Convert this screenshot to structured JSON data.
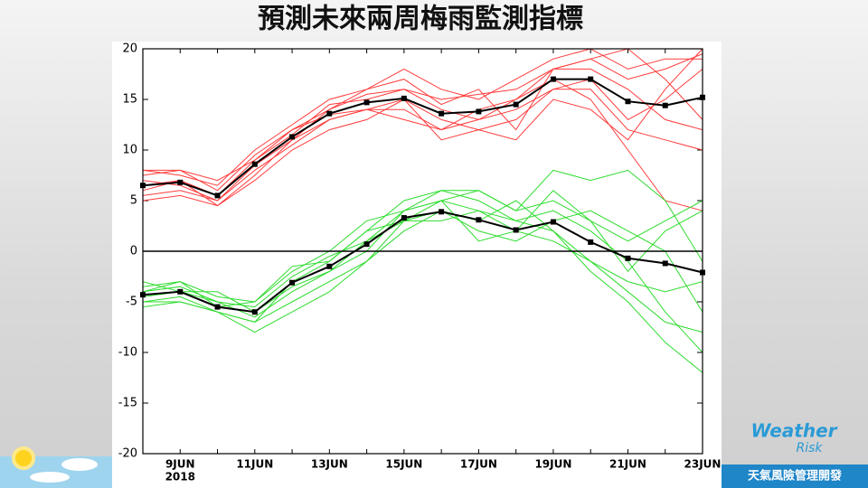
{
  "slide_title": "預測未來兩周梅雨監測指標",
  "logo": {
    "line1": "Weather",
    "line2": "Risk",
    "tagline": "天氣風險管理開發"
  },
  "chart_data": {
    "type": "line",
    "categories": [
      null,
      "9JUN",
      null,
      "11JUN",
      null,
      "13JUN",
      null,
      "15JUN",
      null,
      "17JUN",
      null,
      "19JUN",
      null,
      "21JUN",
      null,
      "23JUN"
    ],
    "x_sublabel": "2018",
    "ylim": [
      -20,
      20
    ],
    "yticks": [
      -20,
      -15,
      -10,
      -5,
      0,
      5,
      10,
      15,
      20
    ],
    "zero_line": true,
    "grid": false,
    "series": [
      {
        "color": "#ff3b3b",
        "values": [
          7.5,
          8,
          6,
          9.5,
          12,
          14,
          15.5,
          16,
          14,
          13,
          15,
          18,
          18,
          16,
          13,
          12
        ]
      },
      {
        "color": "#ff3b3b",
        "values": [
          5.5,
          6,
          5,
          8,
          10.5,
          13,
          14,
          14,
          12,
          14,
          15,
          17,
          15,
          10,
          5,
          4
        ]
      },
      {
        "color": "#ff3b3b",
        "values": [
          8,
          7.5,
          6.5,
          10,
          12.5,
          15,
          16,
          18,
          16,
          15,
          17,
          19,
          20,
          18,
          19,
          19
        ]
      },
      {
        "color": "#ff3b3b",
        "values": [
          6,
          7,
          4.5,
          7,
          10,
          12,
          13,
          15,
          11,
          12,
          13,
          16,
          17,
          13,
          15,
          18
        ]
      },
      {
        "color": "#ff3b3b",
        "values": [
          7,
          6.5,
          5,
          8.5,
          11,
          14,
          16,
          17,
          14.5,
          16,
          12,
          18,
          19,
          17,
          18,
          19.5
        ]
      },
      {
        "color": "#ff3b3b",
        "values": [
          5,
          5.5,
          4.5,
          7.5,
          11,
          13,
          14,
          13,
          12,
          13,
          14,
          16,
          16,
          12,
          11,
          10
        ]
      },
      {
        "color": "#ff3b3b",
        "values": [
          8,
          8,
          7,
          9,
          11.5,
          14.5,
          15,
          16,
          15,
          15.5,
          16,
          18,
          19,
          20,
          17,
          13
        ]
      },
      {
        "color": "#ff3b3b",
        "values": [
          6.5,
          7,
          5.5,
          9,
          12,
          13.5,
          14,
          15,
          13,
          12,
          11,
          15,
          14,
          11,
          16,
          20
        ]
      },
      {
        "color": "#000000",
        "marker": "square",
        "values": [
          6.5,
          6.8,
          5.5,
          8.6,
          11.3,
          13.6,
          14.7,
          15.1,
          13.6,
          13.8,
          14.5,
          17.0,
          17.0,
          14.8,
          14.4,
          15.2
        ]
      },
      {
        "color": "#2edc2e",
        "values": [
          -4,
          -3.5,
          -5,
          -6.5,
          -4,
          -2,
          1,
          4,
          5,
          4,
          3,
          4,
          2,
          -1,
          -6,
          -10
        ]
      },
      {
        "color": "#2edc2e",
        "values": [
          -5,
          -4.5,
          -6,
          -7,
          -3,
          -1,
          2,
          5,
          6,
          5,
          3,
          2,
          -1,
          -4,
          -7,
          -8
        ]
      },
      {
        "color": "#2edc2e",
        "values": [
          -3.5,
          -3,
          -4.5,
          -5,
          -2,
          0,
          3,
          4,
          6,
          6,
          4,
          5,
          3,
          1,
          3,
          5
        ]
      },
      {
        "color": "#2edc2e",
        "values": [
          -5.5,
          -5,
          -6,
          -7,
          -5,
          -3,
          -1,
          2,
          4,
          2,
          1,
          3,
          4,
          2,
          0,
          -6
        ]
      },
      {
        "color": "#2edc2e",
        "values": [
          -4.5,
          -4,
          -5,
          -5.5,
          -2.5,
          -0.5,
          1,
          3,
          4,
          3,
          5,
          2,
          -2,
          -5,
          -9,
          -12
        ]
      },
      {
        "color": "#2edc2e",
        "values": [
          -3,
          -4,
          -4,
          -6,
          -3.5,
          -2,
          0,
          4,
          5,
          1,
          2,
          6,
          3,
          -2,
          2,
          4
        ]
      },
      {
        "color": "#2edc2e",
        "values": [
          -5,
          -5,
          -6,
          -8,
          -6,
          -4,
          -1,
          3,
          3,
          4,
          2,
          1,
          -1,
          -3,
          -4,
          -3
        ]
      },
      {
        "color": "#2edc2e",
        "values": [
          -4,
          -3,
          -5.5,
          -5,
          -1.5,
          -1,
          2,
          3,
          5,
          6,
          4,
          8,
          7,
          8,
          5,
          -1
        ]
      },
      {
        "color": "#000000",
        "marker": "square",
        "values": [
          -4.3,
          -4.0,
          -5.5,
          -6.0,
          -3.1,
          -1.5,
          0.7,
          3.3,
          3.9,
          3.1,
          2.1,
          2.9,
          0.9,
          -0.7,
          -1.2,
          -2.1
        ]
      }
    ]
  }
}
